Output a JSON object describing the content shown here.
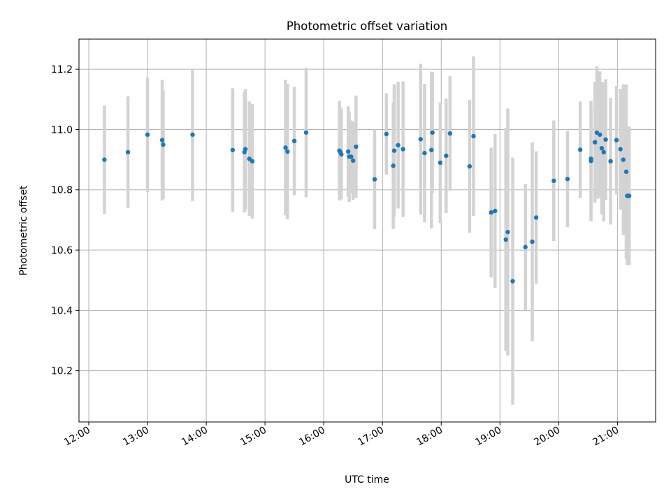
{
  "chart_data": {
    "type": "scatter",
    "title": "Photometric offset variation",
    "xlabel": "UTC time",
    "ylabel": "Photometric offset",
    "xlim": [
      "11:50",
      "21:39"
    ],
    "ylim": [
      10.03,
      11.3
    ],
    "x_ticks": [
      "12:00",
      "13:00",
      "14:00",
      "15:00",
      "16:00",
      "17:00",
      "18:00",
      "19:00",
      "20:00",
      "21:00"
    ],
    "y_ticks": [
      10.2,
      10.4,
      10.6,
      10.8,
      11.0,
      11.2
    ],
    "grid": true,
    "colors": {
      "marker": "#1f77b4",
      "errorbar": "#d3d3d3",
      "grid": "#b0b0b0"
    },
    "series": [
      {
        "x": [
          "12:16",
          "12:40",
          "13:00",
          "13:15",
          "13:16",
          "13:46",
          "14:27",
          "14:39",
          "14:40",
          "14:44",
          "14:47",
          "15:21",
          "15:23",
          "15:30",
          "15:42",
          "16:16",
          "16:17",
          "16:18",
          "16:25",
          "16:26",
          "16:28",
          "16:30",
          "16:33",
          "16:52",
          "17:04",
          "17:11",
          "17:12",
          "17:16",
          "17:21",
          "17:39",
          "17:43",
          "17:50",
          "17:51",
          "17:59",
          "18:05",
          "18:09",
          "18:29",
          "18:33",
          "18:51",
          "18:55",
          "19:06",
          "19:08",
          "19:13",
          "19:26",
          "19:33",
          "19:37",
          "19:55",
          "20:09",
          "20:22",
          "20:33",
          "20:33",
          "20:37",
          "20:39",
          "20:42",
          "20:44",
          "20:46",
          "20:48",
          "20:53",
          "20:59",
          "21:03",
          "21:06",
          "21:09",
          "21:10",
          "21:12"
        ],
        "y": [
          10.9,
          10.925,
          10.983,
          10.965,
          10.95,
          10.983,
          10.932,
          10.925,
          10.935,
          10.903,
          10.895,
          10.94,
          10.927,
          10.962,
          10.99,
          10.93,
          10.925,
          10.918,
          10.927,
          10.91,
          10.91,
          10.897,
          10.943,
          10.835,
          10.985,
          10.88,
          10.93,
          10.948,
          10.935,
          10.968,
          10.922,
          10.932,
          10.99,
          10.89,
          10.913,
          10.987,
          10.878,
          10.978,
          10.725,
          10.73,
          10.635,
          10.66,
          10.497,
          10.61,
          10.628,
          10.708,
          10.83,
          10.836,
          10.933,
          10.896,
          10.903,
          10.958,
          10.99,
          10.983,
          10.938,
          10.925,
          10.967,
          10.895,
          10.965,
          10.935,
          10.9,
          10.86,
          10.78,
          10.78
        ],
        "err": [
          0.18,
          0.185,
          0.19,
          0.2,
          0.18,
          0.22,
          0.205,
          0.2,
          0.2,
          0.19,
          0.19,
          0.225,
          0.225,
          0.18,
          0.215,
          0.165,
          0.15,
          0.15,
          0.15,
          0.15,
          0.12,
          0.13,
          0.17,
          0.165,
          0.135,
          0.21,
          0.22,
          0.21,
          0.225,
          0.25,
          0.23,
          0.26,
          0.2,
          0.2,
          0.19,
          0.19,
          0.22,
          0.265,
          0.215,
          0.255,
          0.37,
          0.41,
          0.41,
          0.21,
          0.33,
          0.22,
          0.2,
          0.16,
          0.16,
          0.2,
          0.17,
          0.2,
          0.22,
          0.21,
          0.22,
          0.23,
          0.2,
          0.21,
          0.18,
          0.2,
          0.25,
          0.29,
          0.23,
          0.23
        ]
      }
    ]
  }
}
